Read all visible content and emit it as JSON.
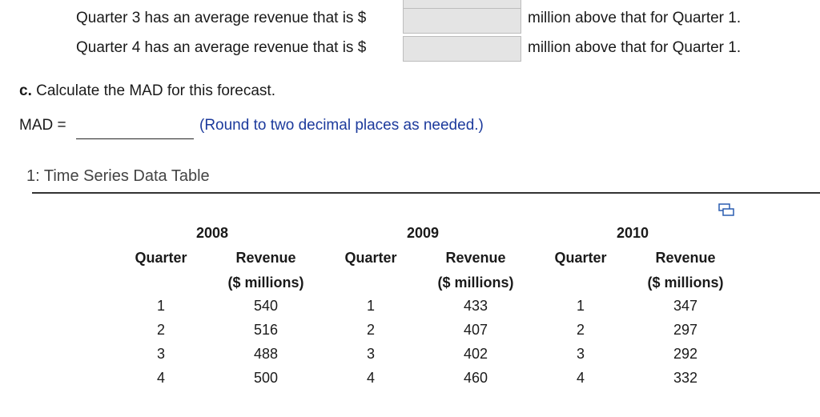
{
  "questions": [
    {
      "prefix": "Quarter 3 has an average revenue that is $",
      "suffix": "million above that for Quarter 1."
    },
    {
      "prefix": "Quarter 4 has an average revenue that is $",
      "suffix": "million above that for Quarter 1."
    }
  ],
  "part_c": {
    "label": "c.",
    "text": "Calculate the MAD for this forecast."
  },
  "mad": {
    "label": "MAD =",
    "hint": "(Round to two decimal places as needed.)"
  },
  "table": {
    "title": "1: Time Series Data Table",
    "groups": [
      {
        "year": "2008",
        "quarter_header": "Quarter",
        "revenue_header": "Revenue",
        "unit_header": "($ millions)",
        "rows": [
          [
            1,
            540
          ],
          [
            2,
            516
          ],
          [
            3,
            488
          ],
          [
            4,
            500
          ]
        ]
      },
      {
        "year": "2009",
        "quarter_header": "Quarter",
        "revenue_header": "Revenue",
        "unit_header": "($ millions)",
        "rows": [
          [
            1,
            433
          ],
          [
            2,
            407
          ],
          [
            3,
            402
          ],
          [
            4,
            460
          ]
        ]
      },
      {
        "year": "2010",
        "quarter_header": "Quarter",
        "revenue_header": "Revenue",
        "unit_header": "($ millions)",
        "rows": [
          [
            1,
            347
          ],
          [
            2,
            297
          ],
          [
            3,
            292
          ],
          [
            4,
            332
          ]
        ]
      }
    ]
  }
}
